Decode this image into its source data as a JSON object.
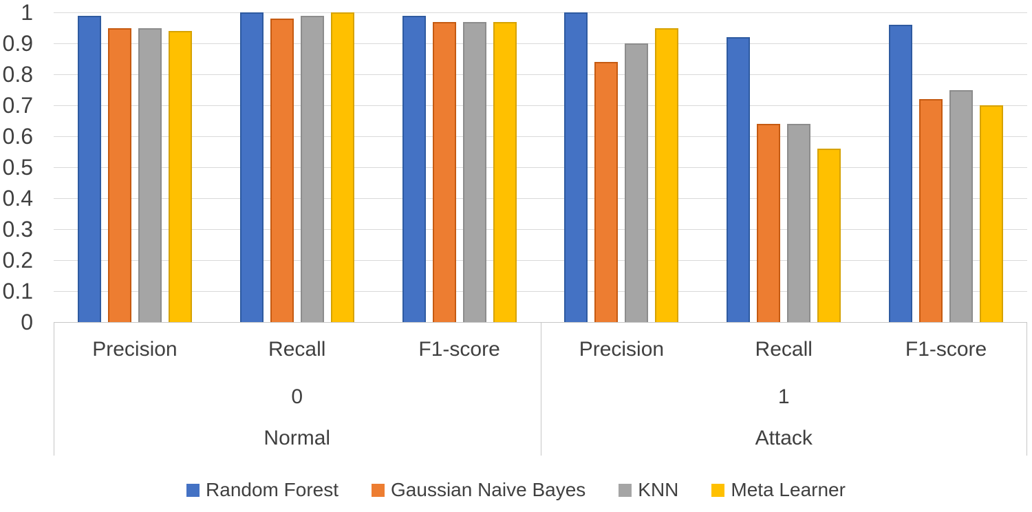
{
  "chart_data": {
    "type": "bar",
    "grid": true,
    "legend_position": "bottom",
    "ylim": [
      0,
      1
    ],
    "ytick_step": 0.1,
    "yticks": [
      "0",
      "0.1",
      "0.2",
      "0.3",
      "0.4",
      "0.5",
      "0.6",
      "0.7",
      "0.8",
      "0.9",
      "1"
    ],
    "categories": [
      "Precision",
      "Recall",
      "F1-score",
      "Precision",
      "Recall",
      "F1-score"
    ],
    "category_groups": [
      {
        "code": "0",
        "name": "Normal",
        "span": 3
      },
      {
        "code": "1",
        "name": "Attack",
        "span": 3
      }
    ],
    "series": [
      {
        "name": "Random Forest",
        "color": "#4472C4",
        "border_color": "#2E5AA0",
        "values": [
          0.99,
          1.0,
          0.99,
          1.0,
          0.92,
          0.96
        ]
      },
      {
        "name": "Gaussian Naive Bayes",
        "color": "#ED7D31",
        "border_color": "#C55A11",
        "values": [
          0.95,
          0.98,
          0.97,
          0.84,
          0.64,
          0.72
        ]
      },
      {
        "name": "KNN",
        "color": "#A5A5A5",
        "border_color": "#8C8C8C",
        "values": [
          0.95,
          0.99,
          0.97,
          0.9,
          0.64,
          0.75
        ]
      },
      {
        "name": "Meta Learner",
        "color": "#FFC000",
        "border_color": "#D6A200",
        "values": [
          0.94,
          1.0,
          0.97,
          0.95,
          0.56,
          0.7
        ]
      }
    ],
    "colors": {
      "text": "#404040",
      "gridline": "#d9d9d9",
      "axis_line": "#c6c6c6",
      "background": "#ffffff"
    }
  }
}
